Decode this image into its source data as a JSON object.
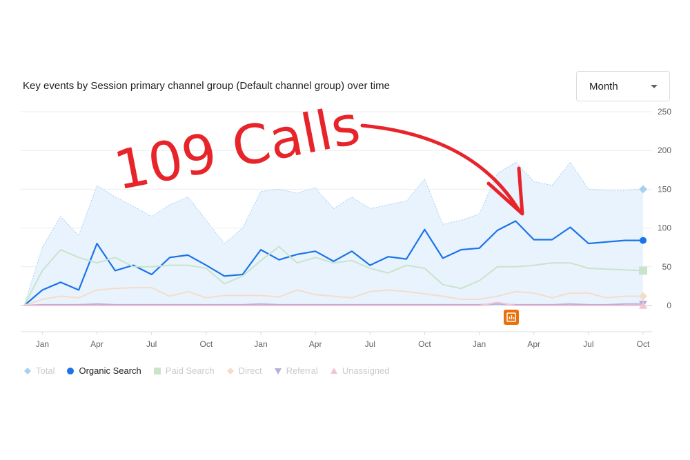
{
  "title": "Key events by Session primary channel group (Default channel group) over time",
  "granularity": {
    "selected": "Month"
  },
  "annotation": {
    "text": "109 Calls",
    "color": "#e8242b"
  },
  "chart_data": {
    "type": "line",
    "title": "Key events by Session primary channel group (Default channel group) over time",
    "xlabel": "",
    "ylabel": "",
    "x": [
      "2022-12",
      "2023-01",
      "2023-02",
      "2023-03",
      "2023-04",
      "2023-05",
      "2023-06",
      "2023-07",
      "2023-08",
      "2023-09",
      "2023-10",
      "2023-11",
      "2023-12",
      "2024-01",
      "2024-02",
      "2024-03",
      "2024-04",
      "2024-05",
      "2024-06",
      "2024-07",
      "2024-08",
      "2024-09",
      "2024-10",
      "2024-11",
      "2024-12",
      "2025-01",
      "2025-02",
      "2025-03",
      "2025-04",
      "2025-05",
      "2025-06",
      "2025-07",
      "2025-08",
      "2025-09",
      "2025-10"
    ],
    "x_tick_labels": [
      "Jan",
      "Apr",
      "Jul",
      "Oct",
      "Jan",
      "Apr",
      "Jul",
      "Oct",
      "Jan",
      "Apr",
      "Jul",
      "Oct"
    ],
    "ylim": [
      0,
      250
    ],
    "y_ticks": [
      0,
      50,
      100,
      150,
      200,
      250
    ],
    "y_axis_position": "right",
    "grid": true,
    "legend_position": "bottom-left",
    "series": [
      {
        "name": "Total",
        "style": "area",
        "color": "#a8d0f0",
        "active": false,
        "marker": "diamond",
        "values": [
          0,
          75,
          115,
          90,
          155,
          140,
          128,
          115,
          130,
          140,
          110,
          80,
          100,
          147,
          150,
          145,
          152,
          125,
          140,
          125,
          130,
          135,
          163,
          105,
          110,
          118,
          170,
          185,
          160,
          155,
          185,
          150,
          148,
          148,
          150
        ]
      },
      {
        "name": "Organic Search",
        "style": "line",
        "color": "#1a73e8",
        "active": true,
        "marker": "circle",
        "values": [
          0,
          20,
          30,
          20,
          80,
          45,
          52,
          40,
          62,
          65,
          52,
          38,
          40,
          72,
          59,
          66,
          70,
          57,
          70,
          52,
          63,
          60,
          98,
          61,
          72,
          74,
          97,
          109,
          85,
          85,
          101,
          80,
          82,
          84,
          84
        ]
      },
      {
        "name": "Paid Search",
        "style": "line",
        "color": "#c9e4c8",
        "active": false,
        "marker": "square",
        "values": [
          0,
          45,
          72,
          62,
          55,
          62,
          50,
          50,
          52,
          52,
          48,
          28,
          38,
          58,
          76,
          55,
          62,
          55,
          58,
          48,
          42,
          52,
          48,
          27,
          22,
          32,
          50,
          50,
          52,
          55,
          55,
          48,
          47,
          46,
          45
        ]
      },
      {
        "name": "Direct",
        "style": "line",
        "color": "#f6dcc8",
        "active": false,
        "marker": "diamond",
        "values": [
          0,
          8,
          12,
          10,
          20,
          22,
          23,
          23,
          12,
          18,
          10,
          13,
          13,
          13,
          11,
          20,
          14,
          12,
          10,
          18,
          20,
          18,
          15,
          12,
          8,
          8,
          12,
          18,
          16,
          10,
          16,
          16,
          10,
          12,
          12
        ]
      },
      {
        "name": "Referral",
        "style": "line",
        "color": "#b8aed8",
        "active": false,
        "marker": "triangle-down",
        "values": [
          0,
          1,
          1,
          1,
          2,
          1,
          1,
          1,
          1,
          1,
          1,
          1,
          1,
          2,
          1,
          1,
          1,
          1,
          1,
          1,
          1,
          1,
          1,
          1,
          1,
          1,
          2,
          1,
          1,
          1,
          2,
          1,
          1,
          2,
          2
        ]
      },
      {
        "name": "Unassigned",
        "style": "line",
        "color": "#f3c3d4",
        "active": false,
        "marker": "triangle-up",
        "values": [
          0,
          0,
          0,
          0,
          0,
          0,
          0,
          0,
          0,
          0,
          0,
          0,
          0,
          0,
          0,
          0,
          0,
          0,
          0,
          0,
          0,
          0,
          0,
          0,
          0,
          0,
          4,
          0,
          0,
          0,
          0,
          0,
          0,
          0,
          0
        ]
      }
    ]
  }
}
